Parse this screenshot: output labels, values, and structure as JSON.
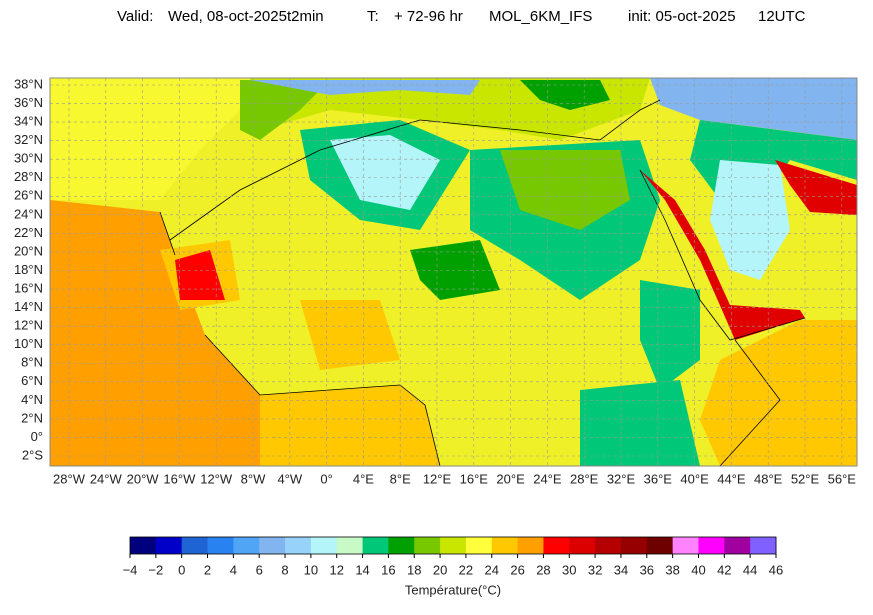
{
  "header": {
    "valid_label": "Valid:",
    "valid_date": "Wed, 08-oct-2025t2min",
    "t_label": "T:",
    "range": "+ 72-96 hr",
    "model": "MOL_6KM_IFS",
    "init": "init: 05-oct-2025",
    "run": "12UTC"
  },
  "lat_labels": [
    "38°N",
    "36°N",
    "34°N",
    "32°N",
    "30°N",
    "28°N",
    "26°N",
    "24°N",
    "22°N",
    "20°N",
    "18°N",
    "16°N",
    "14°N",
    "12°N",
    "10°N",
    "8°N",
    "6°N",
    "4°N",
    "2°N",
    "0°",
    "2°S"
  ],
  "lon_labels": [
    "28°W",
    "24°W",
    "20°W",
    "16°W",
    "12°W",
    "8°W",
    "4°W",
    "0°",
    "4°E",
    "8°E",
    "12°E",
    "16°E",
    "20°E",
    "24°E",
    "28°E",
    "32°E",
    "36°E",
    "40°E",
    "44°E",
    "48°E",
    "52°E",
    "56°E"
  ],
  "colorbar": {
    "label": "Température(°C)",
    "ticks": [
      {
        "value": -4,
        "label": "−4"
      },
      {
        "value": -2,
        "label": "−2"
      },
      0,
      2,
      4,
      6,
      8,
      10,
      12,
      14,
      16,
      18,
      20,
      22,
      24,
      26,
      28,
      30,
      32,
      34,
      36,
      38,
      40,
      42,
      44,
      46
    ],
    "colors": [
      "#00007f",
      "#0000c8",
      "#1e64d2",
      "#2882f0",
      "#50a5f5",
      "#82b4f0",
      "#96d2fa",
      "#b4f5fa",
      "#c8fac8",
      "#00c878",
      "#00a000",
      "#78c800",
      "#c8e600",
      "#ffff3c",
      "#ffc800",
      "#ffa000",
      "#ff0000",
      "#dc0000",
      "#b40000",
      "#960000",
      "#6e0000",
      "#ff82ff",
      "#ff00ff",
      "#a000a0",
      "#8060ff"
    ]
  }
}
